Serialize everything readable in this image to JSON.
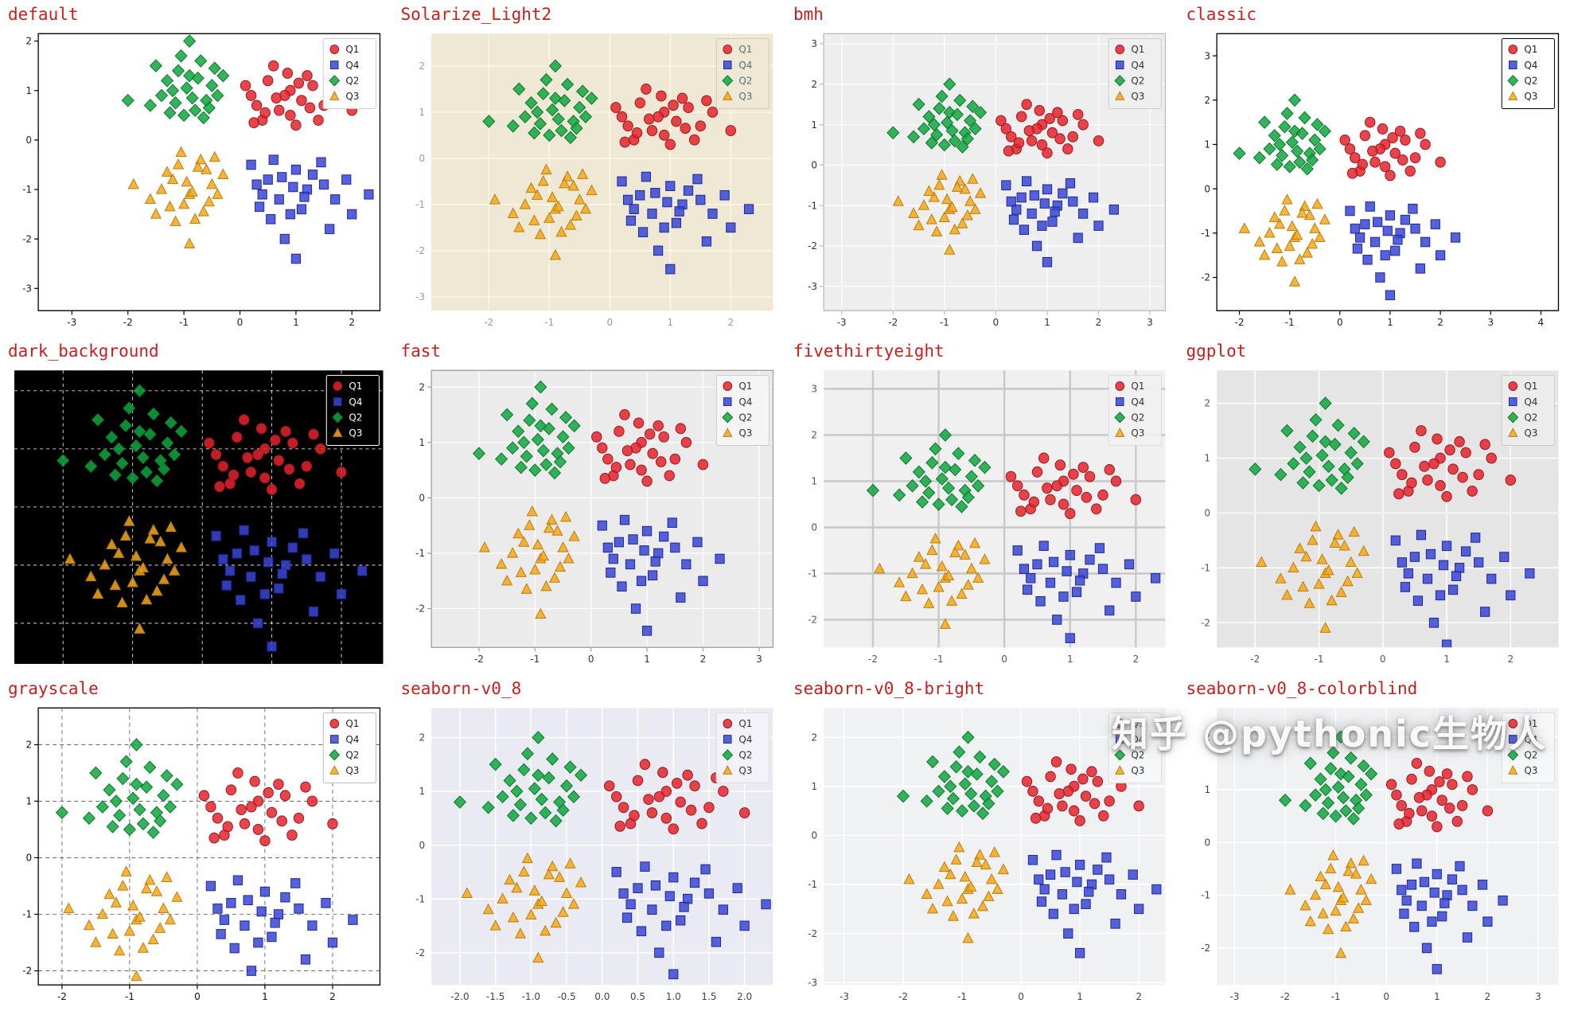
{
  "page": {
    "watermark": "知乎 @pythonic生物人",
    "title_color": "#cc1d1d"
  },
  "chart_data": {
    "type": "scatter",
    "description": "Comparison of matplotlib styles, same four-cluster scatter data rendered in 12 styles",
    "legend": {
      "position": "upper right",
      "entries": [
        "Q1",
        "Q4",
        "Q2",
        "Q3"
      ]
    },
    "series": [
      {
        "name": "Q1",
        "marker": "circle",
        "color": "#e3242b",
        "edge": "#a31622",
        "x": [
          0.2,
          0.5,
          0.7,
          0.9,
          1.1,
          1.3,
          0.4,
          0.6,
          1.0,
          1.5,
          0.8,
          1.2,
          0.3,
          1.7,
          0.9,
          0.1,
          1.4,
          0.65,
          1.05,
          2.0,
          0.45,
          1.25,
          0.85,
          1.6,
          0.25
        ],
        "y": [
          0.9,
          1.2,
          0.6,
          1.0,
          0.8,
          1.1,
          0.4,
          1.5,
          0.3,
          0.7,
          0.9,
          1.3,
          0.7,
          1.0,
          0.5,
          1.1,
          0.4,
          0.85,
          1.15,
          0.6,
          0.55,
          0.65,
          1.35,
          1.25,
          0.35
        ]
      },
      {
        "name": "Q4",
        "marker": "square",
        "color": "#3a46d4",
        "edge": "#1f2a9e",
        "x": [
          0.2,
          0.5,
          0.7,
          1.0,
          1.2,
          0.9,
          1.5,
          0.4,
          0.6,
          1.1,
          1.3,
          0.8,
          1.7,
          0.3,
          1.0,
          2.0,
          0.55,
          1.45,
          0.75,
          1.15,
          1.9,
          0.35,
          1.6,
          0.95,
          2.3
        ],
        "y": [
          -0.5,
          -0.8,
          -1.2,
          -0.6,
          -1.0,
          -1.5,
          -0.9,
          -1.1,
          -0.4,
          -1.4,
          -0.7,
          -2.0,
          -1.2,
          -0.9,
          -2.4,
          -1.5,
          -1.6,
          -0.45,
          -0.75,
          -1.15,
          -0.8,
          -1.35,
          -1.8,
          -0.95,
          -1.1
        ]
      },
      {
        "name": "Q2",
        "marker": "diamond",
        "color": "#12a53f",
        "edge": "#0b7a2c",
        "x": [
          -1.2,
          -0.9,
          -0.6,
          -1.0,
          -0.7,
          -1.4,
          -0.5,
          -1.1,
          -0.8,
          -1.6,
          -0.4,
          -0.95,
          -1.3,
          -0.65,
          -1.05,
          -0.3,
          -1.5,
          -0.85,
          -0.55,
          -1.25,
          -2.0,
          -0.75,
          -1.15,
          -0.45,
          -0.9
        ],
        "y": [
          1.0,
          1.3,
          0.8,
          0.5,
          1.6,
          0.9,
          1.1,
          1.4,
          0.6,
          0.7,
          0.9,
          1.05,
          1.2,
          0.45,
          1.7,
          1.3,
          1.5,
          0.85,
          0.65,
          0.55,
          0.8,
          1.25,
          0.75,
          1.45,
          2.0
        ]
      },
      {
        "name": "Q3",
        "marker": "triangle",
        "color": "#f2a71b",
        "edge": "#c07f0a",
        "x": [
          -1.2,
          -0.9,
          -0.6,
          -1.0,
          -0.7,
          -1.4,
          -0.5,
          -1.1,
          -0.8,
          -1.6,
          -0.4,
          -0.95,
          -1.3,
          -0.65,
          -1.05,
          -0.3,
          -1.5,
          -0.85,
          -0.55,
          -1.25,
          -1.9,
          -0.75,
          -1.15,
          -0.45,
          -0.9
        ],
        "y": [
          -0.8,
          -1.1,
          -0.6,
          -1.3,
          -0.4,
          -1.0,
          -0.9,
          -0.5,
          -1.6,
          -1.2,
          -1.1,
          -0.85,
          -0.65,
          -1.45,
          -0.25,
          -0.7,
          -1.5,
          -1.05,
          -1.25,
          -1.35,
          -0.9,
          -0.55,
          -1.65,
          -0.35,
          -2.1
        ]
      }
    ],
    "panels": [
      {
        "title": "default",
        "bg": "#ffffff",
        "frame": "box",
        "frame_color": "#000000",
        "grid": false,
        "grid_color": "#ffffff",
        "grid_dash": "",
        "grid_width": 1,
        "tick_color": "#222222",
        "show_tick_labels": true,
        "xticks": [
          -3,
          -2,
          -1,
          0,
          1,
          2
        ],
        "yticks": [
          -3,
          -2,
          -1,
          0,
          1,
          2
        ],
        "xtick_decimals": 0,
        "xlim": [
          -3.6,
          2.5
        ],
        "ylim": [
          -3.45,
          2.15
        ],
        "legend_bg": "#ffffff",
        "legend_border": "#cccccc",
        "legend_text": "#222222"
      },
      {
        "title": "Solarize_Light2",
        "bg": "#eee8d5",
        "frame": "none",
        "frame_color": "#eee8d5",
        "grid": true,
        "grid_color": "#fdf6e3",
        "grid_dash": "",
        "grid_width": 1.4,
        "tick_color": "#93a1a1",
        "show_tick_labels": true,
        "xticks": [
          -2,
          -1,
          0,
          1,
          2
        ],
        "yticks": [
          -3,
          -2,
          -1,
          0,
          1,
          2
        ],
        "xtick_decimals": 0,
        "xlim": [
          -2.95,
          2.7
        ],
        "ylim": [
          -3.3,
          2.7
        ],
        "legend_bg": "#eee8d5",
        "legend_border": "#d3cbb7",
        "legend_text": "#586e75"
      },
      {
        "title": "bmh",
        "bg": "#eeeeee",
        "frame": "box",
        "frame_color": "#bdbdbd",
        "grid": true,
        "grid_color": "#ffffff",
        "grid_dash": "",
        "grid_width": 1.2,
        "tick_color": "#333333",
        "show_tick_labels": true,
        "xticks": [
          -3,
          -2,
          -1,
          0,
          1,
          2,
          3
        ],
        "yticks": [
          -3,
          -2,
          -1,
          0,
          1,
          2,
          3
        ],
        "xtick_decimals": 0,
        "xlim": [
          -3.35,
          3.3
        ],
        "ylim": [
          -3.6,
          3.25
        ],
        "legend_bg": "#eeeeee",
        "legend_border": "#cccccc",
        "legend_text": "#333333"
      },
      {
        "title": "classic",
        "bg": "#ffffff",
        "frame": "box",
        "frame_color": "#000000",
        "grid": false,
        "grid_color": "#ffffff",
        "grid_dash": "",
        "grid_width": 1,
        "tick_color": "#222222",
        "show_tick_labels": true,
        "xticks": [
          -2,
          -1,
          0,
          1,
          2,
          3,
          4
        ],
        "yticks": [
          -2,
          -1,
          0,
          1,
          2,
          3
        ],
        "xtick_decimals": 0,
        "xlim": [
          -2.45,
          4.35
        ],
        "ylim": [
          -2.75,
          3.5
        ],
        "legend_bg": "#ffffff",
        "legend_border": "#000000",
        "legend_text": "#222222"
      },
      {
        "title": "dark_background",
        "bg": "#000000",
        "frame": "none",
        "frame_color": "#000000",
        "grid": true,
        "grid_color": "#ffffff",
        "grid_dash": "4 4",
        "grid_width": 0.8,
        "tick_color": "#ffffff",
        "show_tick_labels": false,
        "xticks": [
          -2,
          -1,
          0,
          1,
          2
        ],
        "yticks": [
          -2,
          -1,
          0,
          1,
          2
        ],
        "xtick_decimals": 0,
        "xlim": [
          -2.7,
          2.6
        ],
        "ylim": [
          -2.7,
          2.35
        ],
        "legend_bg": "#000000",
        "legend_border": "#ffffff",
        "legend_text": "#ffffff"
      },
      {
        "title": "fast",
        "bg": "#ebebeb",
        "frame": "box",
        "frame_color": "#a0a0a0",
        "grid": true,
        "grid_color": "#ffffff",
        "grid_dash": "",
        "grid_width": 1.1,
        "tick_color": "#333333",
        "show_tick_labels": true,
        "xticks": [
          -2,
          -1,
          0,
          1,
          2,
          3
        ],
        "yticks": [
          -2,
          -1,
          0,
          1,
          2
        ],
        "xtick_decimals": 0,
        "xlim": [
          -2.85,
          3.25
        ],
        "ylim": [
          -2.7,
          2.3
        ],
        "legend_bg": "#f5f5f5",
        "legend_border": "#cccccc",
        "legend_text": "#333333"
      },
      {
        "title": "fivethirtyeight",
        "bg": "#f0f0f0",
        "frame": "none",
        "frame_color": "#f0f0f0",
        "grid": true,
        "grid_color": "#c8c8c8",
        "grid_dash": "",
        "grid_width": 2.4,
        "tick_color": "#555555",
        "show_tick_labels": true,
        "xticks": [
          -2,
          -1,
          0,
          1,
          2
        ],
        "yticks": [
          -2,
          -1,
          0,
          1,
          2,
          3
        ],
        "xtick_decimals": 0,
        "xlim": [
          -2.75,
          2.45
        ],
        "ylim": [
          -2.6,
          3.4
        ],
        "legend_bg": "#f0f0f0",
        "legend_border": "#dddddd",
        "legend_text": "#333333"
      },
      {
        "title": "ggplot",
        "bg": "#e5e5e5",
        "frame": "none",
        "frame_color": "#e5e5e5",
        "grid": true,
        "grid_color": "#ffffff",
        "grid_dash": "",
        "grid_width": 1.4,
        "tick_color": "#555555",
        "show_tick_labels": true,
        "xticks": [
          -2,
          -1,
          0,
          1,
          2
        ],
        "yticks": [
          -2,
          -1,
          0,
          1,
          2
        ],
        "xtick_decimals": 0,
        "xlim": [
          -2.6,
          2.75
        ],
        "ylim": [
          -2.45,
          2.6
        ],
        "legend_bg": "#ececec",
        "legend_border": "#cccccc",
        "legend_text": "#333333"
      },
      {
        "title": "grayscale",
        "bg": "#ffffff",
        "frame": "box",
        "frame_color": "#000000",
        "grid": true,
        "grid_color": "#555555",
        "grid_dash": "5 4",
        "grid_width": 0.8,
        "tick_color": "#111111",
        "show_tick_labels": true,
        "xticks": [
          -2,
          -1,
          0,
          1,
          2
        ],
        "yticks": [
          -2,
          -1,
          0,
          1,
          2
        ],
        "xtick_decimals": 0,
        "xlim": [
          -2.35,
          2.7
        ],
        "ylim": [
          -2.25,
          2.65
        ],
        "legend_bg": "#ffffff",
        "legend_border": "#bbbbbb",
        "legend_text": "#222222"
      },
      {
        "title": "seaborn-v0_8",
        "bg": "#eaeaf2",
        "frame": "none",
        "frame_color": "#eaeaf2",
        "grid": true,
        "grid_color": "#ffffff",
        "grid_dash": "",
        "grid_width": 1.4,
        "tick_color": "#444444",
        "show_tick_labels": true,
        "xticks": [
          -2,
          -1.5,
          -1,
          -0.5,
          0,
          0.5,
          1,
          1.5,
          2
        ],
        "yticks": [
          -2,
          -1,
          0,
          1,
          2
        ],
        "xtick_decimals": 1,
        "xlim": [
          -2.4,
          2.4
        ],
        "ylim": [
          -2.6,
          2.55
        ],
        "legend_bg": "#f2f2f8",
        "legend_border": "#dddddd",
        "legend_text": "#333333"
      },
      {
        "title": "seaborn-v0_8-bright",
        "bg": "#f0f1f3",
        "frame": "none",
        "frame_color": "#f0f1f3",
        "grid": true,
        "grid_color": "#ffffff",
        "grid_dash": "",
        "grid_width": 1.4,
        "tick_color": "#444444",
        "show_tick_labels": true,
        "xticks": [
          -3,
          -2,
          -1,
          0,
          1,
          2
        ],
        "yticks": [
          -3,
          -2,
          -1,
          0,
          1,
          2
        ],
        "xtick_decimals": 0,
        "xlim": [
          -3.35,
          2.45
        ],
        "ylim": [
          -3.05,
          2.6
        ],
        "legend_bg": "#f6f7f8",
        "legend_border": "#dddddd",
        "legend_text": "#333333"
      },
      {
        "title": "seaborn-v0_8-colorblind",
        "bg": "#f0f1f3",
        "frame": "none",
        "frame_color": "#f0f1f3",
        "grid": true,
        "grid_color": "#ffffff",
        "grid_dash": "",
        "grid_width": 1.4,
        "tick_color": "#444444",
        "show_tick_labels": true,
        "xticks": [
          -3,
          -2,
          -1,
          0,
          1,
          2,
          3
        ],
        "yticks": [
          -2,
          -1,
          0,
          1,
          2
        ],
        "xtick_decimals": 0,
        "xlim": [
          -3.35,
          3.4
        ],
        "ylim": [
          -2.7,
          2.55
        ],
        "legend_bg": "#f6f7f8",
        "legend_border": "#dddddd",
        "legend_text": "#333333"
      }
    ]
  }
}
